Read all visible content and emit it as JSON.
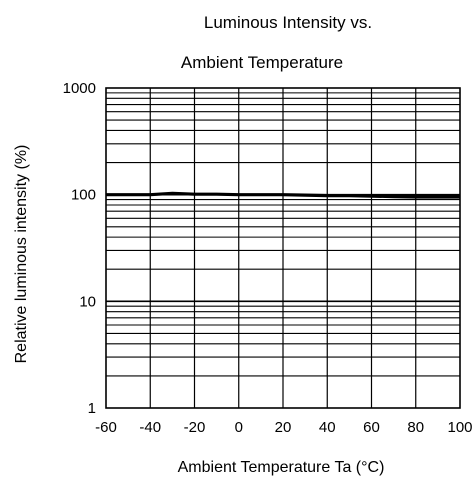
{
  "chart_data": {
    "type": "line",
    "title_line1": "Luminous Intensity vs.",
    "title_line2": "Ambient Temperature",
    "xlabel": "Ambient Temperature Ta (°C)",
    "ylabel": "Relative luminous intensity (%)",
    "x_ticks": [
      "-60",
      "-40",
      "-20",
      "0",
      "20",
      "40",
      "60",
      "80",
      "100"
    ],
    "y_ticks": [
      "1",
      "10",
      "100",
      "1000"
    ],
    "xlim": [
      -60,
      100
    ],
    "ylim": [
      1,
      1000
    ],
    "y_scale": "log",
    "grid": true,
    "series": [
      {
        "x": [
          -60,
          -40,
          -30,
          -20,
          -10,
          0,
          10,
          20,
          30,
          40,
          50,
          60,
          70,
          80,
          85,
          100
        ],
        "y": [
          100,
          100,
          103,
          101,
          101,
          100,
          100,
          100,
          99,
          98,
          98,
          97,
          96,
          95,
          95,
          95
        ]
      }
    ]
  },
  "style": {
    "line_color": "#000000",
    "grid_color": "#000000"
  }
}
